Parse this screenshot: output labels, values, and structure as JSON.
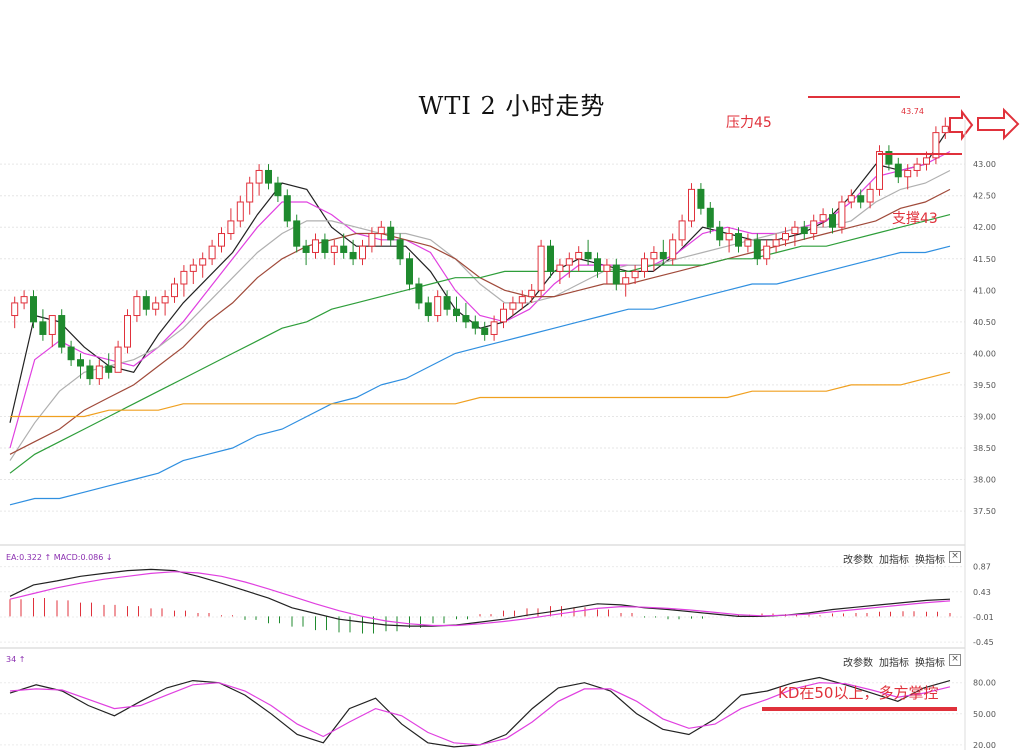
{
  "title": "WTI 2 小时走势",
  "annotations": {
    "resistance": "压力45",
    "support": "支撑43",
    "peak_value": "43.74",
    "kd_note": "KD在50以上，多方掌控"
  },
  "macd_panel": {
    "label": "EA:0.322 ↑ MACD:0.086 ↓",
    "toolbar": [
      "改参数",
      "加指标",
      "换指标"
    ],
    "close": "×"
  },
  "kd_panel": {
    "label": "34 ↑",
    "toolbar": [
      "改参数",
      "加指标",
      "换指标"
    ],
    "close": "×"
  },
  "colors": {
    "up": "#e0313b",
    "down": "#1f8a2e",
    "ma_black": "#222222",
    "ma_pink": "#e040e0",
    "ma_gray": "#b0b0b0",
    "ma_brown": "#a04a3a",
    "ma_green": "#2e9e3a",
    "ma_blue": "#2f8fe0",
    "ma_orange": "#f0a020",
    "annot_red": "#e0313b"
  },
  "chart_data": [
    {
      "type": "candlestick",
      "ylim": [
        37.2,
        43.7
      ],
      "y_ticks": [
        "43.00",
        "42.50",
        "42.00",
        "41.50",
        "41.00",
        "40.50",
        "40.00",
        "39.50",
        "39.00",
        "38.50",
        "38.00",
        "37.50"
      ],
      "candles": [
        [
          40.6,
          40.9,
          40.4,
          40.8
        ],
        [
          40.8,
          41.0,
          40.7,
          40.9
        ],
        [
          40.9,
          41.0,
          40.4,
          40.5
        ],
        [
          40.5,
          40.7,
          40.2,
          40.3
        ],
        [
          40.3,
          40.6,
          40.1,
          40.6
        ],
        [
          40.6,
          40.7,
          40.0,
          40.1
        ],
        [
          40.1,
          40.2,
          39.8,
          39.9
        ],
        [
          39.9,
          40.0,
          39.6,
          39.8
        ],
        [
          39.8,
          39.9,
          39.5,
          39.6
        ],
        [
          39.6,
          39.9,
          39.5,
          39.8
        ],
        [
          39.8,
          40.0,
          39.6,
          39.7
        ],
        [
          39.7,
          40.2,
          39.7,
          40.1
        ],
        [
          40.1,
          40.7,
          40.0,
          40.6
        ],
        [
          40.6,
          41.0,
          40.5,
          40.9
        ],
        [
          40.9,
          41.0,
          40.6,
          40.7
        ],
        [
          40.7,
          40.9,
          40.6,
          40.8
        ],
        [
          40.8,
          41.0,
          40.6,
          40.9
        ],
        [
          40.9,
          41.2,
          40.8,
          41.1
        ],
        [
          41.1,
          41.4,
          40.9,
          41.3
        ],
        [
          41.3,
          41.5,
          41.1,
          41.4
        ],
        [
          41.4,
          41.6,
          41.2,
          41.5
        ],
        [
          41.5,
          41.8,
          41.4,
          41.7
        ],
        [
          41.7,
          42.0,
          41.6,
          41.9
        ],
        [
          41.9,
          42.3,
          41.8,
          42.1
        ],
        [
          42.1,
          42.5,
          42.0,
          42.4
        ],
        [
          42.4,
          42.8,
          42.2,
          42.7
        ],
        [
          42.7,
          43.0,
          42.5,
          42.9
        ],
        [
          42.9,
          43.0,
          42.6,
          42.7
        ],
        [
          42.7,
          42.8,
          42.4,
          42.5
        ],
        [
          42.5,
          42.6,
          42.0,
          42.1
        ],
        [
          42.1,
          42.2,
          41.6,
          41.7
        ],
        [
          41.7,
          41.8,
          41.4,
          41.6
        ],
        [
          41.6,
          41.9,
          41.5,
          41.8
        ],
        [
          41.8,
          41.9,
          41.5,
          41.6
        ],
        [
          41.6,
          41.8,
          41.4,
          41.7
        ],
        [
          41.7,
          41.9,
          41.5,
          41.6
        ],
        [
          41.6,
          41.8,
          41.4,
          41.5
        ],
        [
          41.5,
          41.8,
          41.4,
          41.7
        ],
        [
          41.7,
          42.0,
          41.6,
          41.9
        ],
        [
          41.9,
          42.1,
          41.7,
          42.0
        ],
        [
          42.0,
          42.1,
          41.7,
          41.8
        ],
        [
          41.8,
          41.9,
          41.4,
          41.5
        ],
        [
          41.5,
          41.6,
          41.0,
          41.1
        ],
        [
          41.1,
          41.2,
          40.7,
          40.8
        ],
        [
          40.8,
          40.9,
          40.5,
          40.6
        ],
        [
          40.6,
          41.0,
          40.5,
          40.9
        ],
        [
          40.9,
          41.0,
          40.6,
          40.7
        ],
        [
          40.7,
          40.9,
          40.5,
          40.6
        ],
        [
          40.6,
          40.8,
          40.4,
          40.5
        ],
        [
          40.5,
          40.6,
          40.3,
          40.4
        ],
        [
          40.4,
          40.5,
          40.2,
          40.3
        ],
        [
          40.3,
          40.6,
          40.2,
          40.5
        ],
        [
          40.5,
          40.8,
          40.4,
          40.7
        ],
        [
          40.7,
          40.9,
          40.6,
          40.8
        ],
        [
          40.8,
          41.0,
          40.7,
          40.9
        ],
        [
          40.9,
          41.1,
          40.8,
          41.0
        ],
        [
          41.0,
          41.8,
          40.9,
          41.7
        ],
        [
          41.7,
          41.8,
          41.2,
          41.3
        ],
        [
          41.3,
          41.5,
          41.1,
          41.4
        ],
        [
          41.4,
          41.6,
          41.2,
          41.5
        ],
        [
          41.5,
          41.7,
          41.3,
          41.6
        ],
        [
          41.6,
          41.8,
          41.4,
          41.5
        ],
        [
          41.5,
          41.6,
          41.2,
          41.3
        ],
        [
          41.3,
          41.5,
          41.1,
          41.4
        ],
        [
          41.4,
          41.5,
          41.0,
          41.1
        ],
        [
          41.1,
          41.3,
          40.9,
          41.2
        ],
        [
          41.2,
          41.4,
          41.1,
          41.3
        ],
        [
          41.3,
          41.6,
          41.2,
          41.5
        ],
        [
          41.5,
          41.7,
          41.3,
          41.6
        ],
        [
          41.6,
          41.8,
          41.4,
          41.5
        ],
        [
          41.5,
          41.9,
          41.4,
          41.8
        ],
        [
          41.8,
          42.2,
          41.7,
          42.1
        ],
        [
          42.1,
          42.7,
          42.0,
          42.6
        ],
        [
          42.6,
          42.7,
          42.2,
          42.3
        ],
        [
          42.3,
          42.4,
          41.9,
          42.0
        ],
        [
          42.0,
          42.1,
          41.7,
          41.8
        ],
        [
          41.8,
          42.0,
          41.6,
          41.9
        ],
        [
          41.9,
          42.0,
          41.6,
          41.7
        ],
        [
          41.7,
          41.9,
          41.6,
          41.8
        ],
        [
          41.8,
          41.9,
          41.4,
          41.5
        ],
        [
          41.5,
          41.8,
          41.4,
          41.7
        ],
        [
          41.7,
          41.9,
          41.6,
          41.8
        ],
        [
          41.8,
          42.0,
          41.7,
          41.9
        ],
        [
          41.9,
          42.1,
          41.7,
          42.0
        ],
        [
          42.0,
          42.1,
          41.8,
          41.9
        ],
        [
          41.9,
          42.2,
          41.8,
          42.1
        ],
        [
          42.1,
          42.3,
          42.0,
          42.2
        ],
        [
          42.2,
          42.3,
          41.9,
          42.0
        ],
        [
          42.0,
          42.5,
          41.9,
          42.4
        ],
        [
          42.4,
          42.6,
          42.3,
          42.5
        ],
        [
          42.5,
          42.6,
          42.3,
          42.4
        ],
        [
          42.4,
          42.7,
          42.3,
          42.6
        ],
        [
          42.6,
          43.3,
          42.5,
          43.2
        ],
        [
          43.2,
          43.3,
          42.9,
          43.0
        ],
        [
          43.0,
          43.1,
          42.7,
          42.8
        ],
        [
          42.8,
          43.0,
          42.6,
          42.9
        ],
        [
          42.9,
          43.1,
          42.8,
          43.0
        ],
        [
          43.0,
          43.2,
          42.9,
          43.1
        ],
        [
          43.1,
          43.6,
          43.0,
          43.5
        ],
        [
          43.5,
          43.74,
          43.4,
          43.6
        ]
      ],
      "ma_series": [
        {
          "color": "#222222",
          "values": [
            38.9,
            40.6,
            40.5,
            40.1,
            39.8,
            39.7,
            40.3,
            40.8,
            41.2,
            41.6,
            42.2,
            42.7,
            42.6,
            42.0,
            41.7,
            41.7,
            41.7,
            41.3,
            40.7,
            40.4,
            40.5,
            40.8,
            41.3,
            41.5,
            41.4,
            41.3,
            41.3,
            41.6,
            42.0,
            41.9,
            41.8,
            41.8,
            41.9,
            42.1,
            42.5,
            43.0,
            42.9,
            43.0,
            43.6
          ]
        },
        {
          "color": "#e040e0",
          "values": [
            38.5,
            39.9,
            40.2,
            40.0,
            39.9,
            39.8,
            40.1,
            40.5,
            41.0,
            41.5,
            42.0,
            42.4,
            42.4,
            42.2,
            41.9,
            41.8,
            41.8,
            41.6,
            41.0,
            40.6,
            40.5,
            40.7,
            41.1,
            41.4,
            41.4,
            41.4,
            41.4,
            41.6,
            41.9,
            42.0,
            41.9,
            41.9,
            42.0,
            42.1,
            42.4,
            42.8,
            42.9,
            43.0,
            43.2
          ]
        },
        {
          "color": "#b0b0b0",
          "values": [
            38.3,
            38.9,
            39.4,
            39.7,
            39.8,
            39.9,
            40.1,
            40.4,
            40.8,
            41.2,
            41.6,
            41.9,
            42.1,
            42.1,
            42.0,
            41.9,
            41.9,
            41.8,
            41.5,
            41.1,
            40.8,
            40.8,
            40.9,
            41.1,
            41.3,
            41.4,
            41.4,
            41.5,
            41.6,
            41.7,
            41.8,
            41.9,
            42.0,
            42.0,
            42.1,
            42.4,
            42.6,
            42.7,
            42.9
          ]
        },
        {
          "color": "#a04a3a",
          "values": [
            38.4,
            38.6,
            38.8,
            39.1,
            39.3,
            39.5,
            39.8,
            40.1,
            40.5,
            40.8,
            41.2,
            41.5,
            41.7,
            41.8,
            41.9,
            41.9,
            41.8,
            41.7,
            41.5,
            41.2,
            41.0,
            40.9,
            40.9,
            41.0,
            41.1,
            41.1,
            41.2,
            41.3,
            41.4,
            41.5,
            41.6,
            41.7,
            41.8,
            41.9,
            42.0,
            42.1,
            42.3,
            42.4,
            42.6
          ]
        },
        {
          "color": "#2e9e3a",
          "values": [
            38.1,
            38.4,
            38.6,
            38.8,
            39.0,
            39.2,
            39.4,
            39.6,
            39.8,
            40.0,
            40.2,
            40.4,
            40.5,
            40.7,
            40.8,
            40.9,
            41.0,
            41.1,
            41.2,
            41.2,
            41.3,
            41.3,
            41.3,
            41.3,
            41.3,
            41.3,
            41.4,
            41.4,
            41.4,
            41.5,
            41.5,
            41.6,
            41.7,
            41.7,
            41.8,
            41.9,
            42.0,
            42.1,
            42.2
          ]
        },
        {
          "color": "#2f8fe0",
          "values": [
            37.6,
            37.7,
            37.7,
            37.8,
            37.9,
            38.0,
            38.1,
            38.3,
            38.4,
            38.5,
            38.7,
            38.8,
            39.0,
            39.2,
            39.3,
            39.5,
            39.6,
            39.8,
            40.0,
            40.1,
            40.2,
            40.3,
            40.4,
            40.5,
            40.6,
            40.7,
            40.7,
            40.8,
            40.9,
            41.0,
            41.1,
            41.1,
            41.2,
            41.3,
            41.4,
            41.5,
            41.6,
            41.6,
            41.7
          ]
        },
        {
          "color": "#f0a020",
          "values": [
            39.0,
            39.0,
            39.0,
            39.0,
            39.1,
            39.1,
            39.1,
            39.2,
            39.2,
            39.2,
            39.2,
            39.2,
            39.2,
            39.2,
            39.2,
            39.2,
            39.2,
            39.2,
            39.2,
            39.3,
            39.3,
            39.3,
            39.3,
            39.3,
            39.3,
            39.3,
            39.3,
            39.3,
            39.3,
            39.3,
            39.4,
            39.4,
            39.4,
            39.4,
            39.5,
            39.5,
            39.5,
            39.6,
            39.7
          ]
        }
      ],
      "resistance_level": 45,
      "support_level": 43
    },
    {
      "type": "macd",
      "ylim": [
        -0.5,
        0.95
      ],
      "y_ticks": [
        "0.87",
        "0.43",
        "-0.01",
        "-0.45"
      ],
      "dif": [
        0.35,
        0.55,
        0.62,
        0.7,
        0.75,
        0.8,
        0.82,
        0.8,
        0.7,
        0.58,
        0.45,
        0.32,
        0.15,
        0.05,
        -0.05,
        -0.1,
        -0.15,
        -0.17,
        -0.17,
        -0.15,
        -0.1,
        -0.05,
        0.02,
        0.08,
        0.15,
        0.22,
        0.2,
        0.15,
        0.12,
        0.08,
        0.04,
        0.0,
        0.0,
        0.02,
        0.06,
        0.12,
        0.16,
        0.2,
        0.24,
        0.28,
        0.3
      ],
      "dea": [
        0.3,
        0.4,
        0.5,
        0.58,
        0.65,
        0.7,
        0.75,
        0.78,
        0.76,
        0.7,
        0.6,
        0.48,
        0.35,
        0.22,
        0.1,
        0.0,
        -0.08,
        -0.13,
        -0.16,
        -0.16,
        -0.13,
        -0.09,
        -0.04,
        0.02,
        0.08,
        0.14,
        0.17,
        0.16,
        0.14,
        0.11,
        0.07,
        0.03,
        0.01,
        0.02,
        0.04,
        0.08,
        0.12,
        0.16,
        0.2,
        0.24,
        0.27
      ],
      "hist": [
        0.3,
        0.32,
        0.28,
        0.24,
        0.2,
        0.18,
        0.14,
        0.1,
        0.06,
        0.02,
        -0.06,
        -0.12,
        -0.18,
        -0.24,
        -0.28,
        -0.3,
        -0.26,
        -0.2,
        -0.12,
        -0.05,
        0.04,
        0.1,
        0.14,
        0.18,
        0.16,
        0.12,
        0.06,
        -0.02,
        -0.05,
        -0.04,
        0.0,
        0.03,
        0.05,
        0.04,
        0.02,
        0.05,
        0.06,
        0.08,
        0.09,
        0.08,
        0.06
      ]
    },
    {
      "type": "kd",
      "ylim": [
        15,
        100
      ],
      "y_ticks": [
        "80.00",
        "50.00",
        "20.00"
      ],
      "k": [
        70,
        78,
        72,
        58,
        48,
        62,
        75,
        82,
        80,
        68,
        50,
        30,
        22,
        55,
        65,
        40,
        22,
        18,
        20,
        30,
        55,
        75,
        80,
        72,
        50,
        35,
        30,
        45,
        68,
        72,
        80,
        85,
        78,
        70,
        62,
        75,
        82
      ],
      "d": [
        72,
        74,
        73,
        64,
        55,
        58,
        68,
        78,
        80,
        72,
        58,
        40,
        28,
        42,
        55,
        48,
        32,
        22,
        20,
        26,
        42,
        62,
        74,
        74,
        62,
        45,
        36,
        40,
        55,
        64,
        74,
        80,
        79,
        73,
        66,
        70,
        76
      ]
    }
  ]
}
